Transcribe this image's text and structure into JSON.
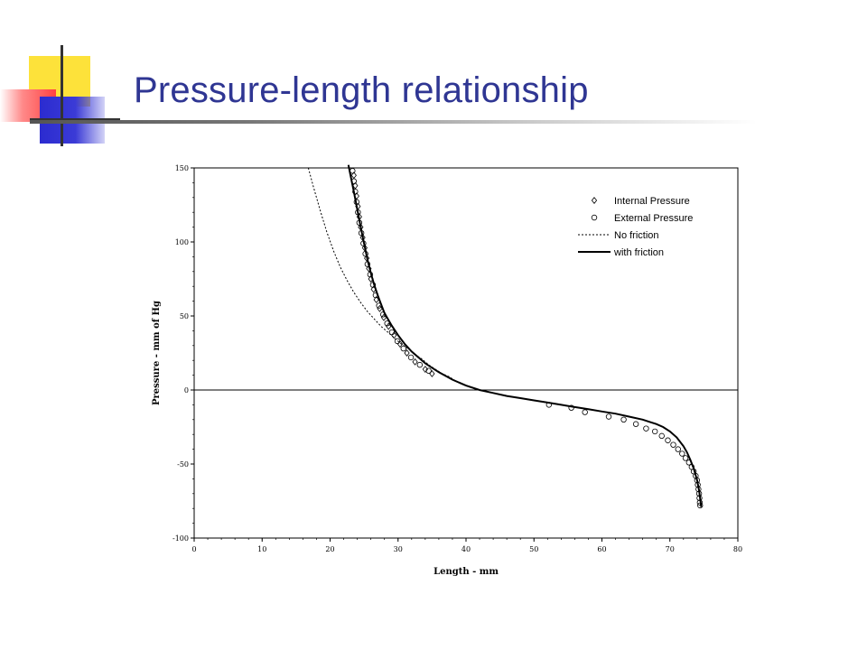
{
  "slide": {
    "title": "Pressure-length relationship"
  },
  "chart_data": {
    "type": "scatter",
    "title": "",
    "xlabel": "Length - mm",
    "ylabel": "Pressure - mm of Hg",
    "xlim": [
      0,
      80
    ],
    "ylim": [
      -100,
      150
    ],
    "xticks": [
      0,
      10,
      20,
      30,
      40,
      50,
      60,
      70,
      80
    ],
    "yticks": [
      -100,
      -50,
      0,
      50,
      100,
      150
    ],
    "grid": false,
    "legend_position": "top-right",
    "legend": [
      {
        "label": "Internal Pressure",
        "marker": "diamond"
      },
      {
        "label": "External Pressure",
        "marker": "circle"
      },
      {
        "label": "No friction",
        "line": "dotted"
      },
      {
        "label": "with friction",
        "line": "solid"
      }
    ],
    "series": [
      {
        "name": "Internal Pressure",
        "marker": "diamond",
        "points": [
          [
            23.5,
            145
          ],
          [
            23.7,
            138
          ],
          [
            23.9,
            131
          ],
          [
            24.1,
            124
          ],
          [
            24.3,
            117
          ],
          [
            24.5,
            110
          ],
          [
            24.8,
            103
          ],
          [
            25.1,
            96
          ],
          [
            25.4,
            89
          ],
          [
            25.7,
            82
          ],
          [
            26.0,
            75
          ],
          [
            26.4,
            68
          ],
          [
            26.8,
            61
          ],
          [
            27.3,
            55
          ],
          [
            27.9,
            49
          ],
          [
            28.6,
            43
          ],
          [
            29.4,
            37
          ],
          [
            30.3,
            31
          ],
          [
            31.3,
            25
          ],
          [
            32.5,
            19
          ],
          [
            34.0,
            14
          ],
          [
            35.0,
            11
          ]
        ]
      },
      {
        "name": "External Pressure",
        "marker": "circle",
        "points": [
          [
            23.3,
            148
          ],
          [
            23.5,
            141
          ],
          [
            23.7,
            134
          ],
          [
            23.9,
            127
          ],
          [
            24.1,
            120
          ],
          [
            24.3,
            113
          ],
          [
            24.6,
            106
          ],
          [
            24.9,
            99
          ],
          [
            25.2,
            92
          ],
          [
            25.5,
            85
          ],
          [
            25.9,
            78
          ],
          [
            26.3,
            71
          ],
          [
            26.7,
            64
          ],
          [
            27.2,
            57
          ],
          [
            27.8,
            51
          ],
          [
            28.4,
            45
          ],
          [
            29.1,
            39
          ],
          [
            29.9,
            33
          ],
          [
            30.8,
            28
          ],
          [
            31.9,
            22
          ],
          [
            33.2,
            17
          ],
          [
            34.5,
            13
          ],
          [
            52.2,
            -10
          ],
          [
            55.5,
            -12
          ],
          [
            57.5,
            -15
          ],
          [
            61.0,
            -18
          ],
          [
            63.2,
            -20
          ],
          [
            65.0,
            -23
          ],
          [
            66.5,
            -26
          ],
          [
            67.8,
            -28
          ],
          [
            68.8,
            -31
          ],
          [
            69.7,
            -34
          ],
          [
            70.5,
            -37
          ],
          [
            71.2,
            -40
          ],
          [
            71.8,
            -43
          ],
          [
            72.3,
            -46
          ],
          [
            72.8,
            -49
          ],
          [
            73.2,
            -52
          ],
          [
            73.5,
            -55
          ],
          [
            73.8,
            -58
          ],
          [
            74.0,
            -61
          ],
          [
            74.1,
            -64
          ],
          [
            74.2,
            -67
          ],
          [
            74.3,
            -70
          ],
          [
            74.35,
            -73
          ],
          [
            74.4,
            -76
          ],
          [
            74.45,
            -78
          ]
        ]
      },
      {
        "name": "No friction",
        "line": "dotted",
        "points": [
          [
            16.8,
            150
          ],
          [
            17.5,
            138
          ],
          [
            18.5,
            122
          ],
          [
            19.5,
            107
          ],
          [
            20.5,
            94
          ],
          [
            21.5,
            83
          ],
          [
            22.5,
            74
          ],
          [
            23.5,
            66
          ],
          [
            24.5,
            59
          ],
          [
            25.5,
            53
          ],
          [
            26.5,
            48
          ],
          [
            27.5,
            43
          ],
          [
            28.5,
            39
          ],
          [
            29.5,
            35
          ],
          [
            30.5,
            31
          ],
          [
            31.5,
            28
          ],
          [
            32.5,
            24
          ],
          [
            33.5,
            21
          ],
          [
            34.5,
            17
          ],
          [
            35.5,
            14
          ],
          [
            36.5,
            11
          ],
          [
            37.5,
            9
          ],
          [
            38.5,
            6
          ],
          [
            39.5,
            4
          ],
          [
            40.5,
            2
          ],
          [
            41.5,
            0.5
          ],
          [
            42.3,
            -0.5
          ]
        ]
      },
      {
        "name": "with friction",
        "line": "solid",
        "points": [
          [
            22.7,
            152
          ],
          [
            23.0,
            145
          ],
          [
            23.5,
            134
          ],
          [
            24.0,
            122
          ],
          [
            24.5,
            110
          ],
          [
            25.0,
            99
          ],
          [
            25.5,
            88
          ],
          [
            26.0,
            79
          ],
          [
            26.5,
            71
          ],
          [
            27.0,
            64
          ],
          [
            27.5,
            58
          ],
          [
            28.0,
            52
          ],
          [
            29.0,
            44
          ],
          [
            30.0,
            37
          ],
          [
            31.0,
            31
          ],
          [
            32.0,
            26
          ],
          [
            33.0,
            22
          ],
          [
            34.0,
            18
          ],
          [
            35.0,
            15
          ],
          [
            36.0,
            12
          ],
          [
            38.0,
            7
          ],
          [
            40.0,
            3
          ],
          [
            42.0,
            0
          ],
          [
            44.0,
            -2
          ],
          [
            46.0,
            -4
          ],
          [
            48.0,
            -5.5
          ],
          [
            50.0,
            -7
          ],
          [
            52.0,
            -8.5
          ],
          [
            54.0,
            -10
          ],
          [
            56.0,
            -11.5
          ],
          [
            58.0,
            -13
          ],
          [
            60.0,
            -14.5
          ],
          [
            62.0,
            -16
          ],
          [
            64.0,
            -18
          ],
          [
            66.0,
            -20
          ],
          [
            67.0,
            -21.5
          ],
          [
            68.0,
            -23
          ],
          [
            69.0,
            -25
          ],
          [
            70.0,
            -28
          ],
          [
            71.0,
            -32
          ],
          [
            72.0,
            -38
          ],
          [
            72.5,
            -42
          ],
          [
            73.0,
            -47
          ],
          [
            73.5,
            -53
          ],
          [
            74.0,
            -61
          ],
          [
            74.3,
            -68
          ],
          [
            74.5,
            -75
          ],
          [
            74.6,
            -79
          ]
        ]
      }
    ]
  }
}
